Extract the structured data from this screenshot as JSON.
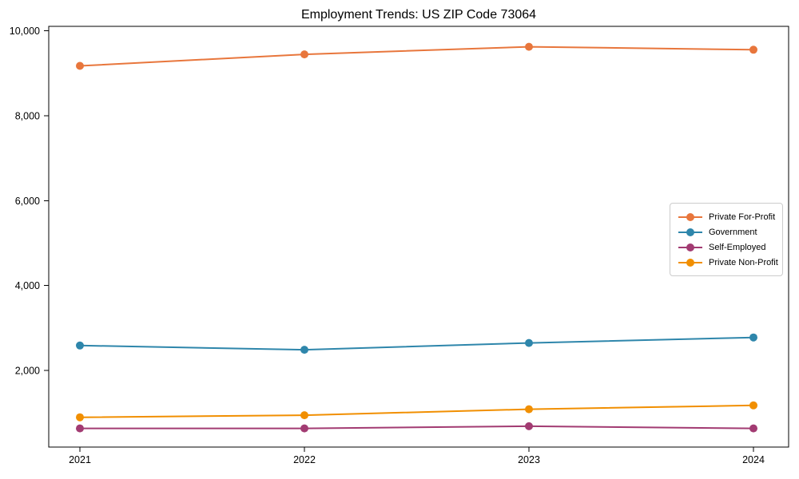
{
  "chart_data": {
    "type": "line",
    "title": "Employment Trends: US ZIP Code 73064",
    "categories": [
      "2021",
      "2022",
      "2023",
      "2024"
    ],
    "series": [
      {
        "name": "Private For-Profit",
        "color": "#E8763C",
        "values": [
          9170,
          9440,
          9620,
          9550
        ]
      },
      {
        "name": "Government",
        "color": "#2E86AB",
        "values": [
          2590,
          2490,
          2650,
          2780
        ]
      },
      {
        "name": "Self-Employed",
        "color": "#A23B72",
        "values": [
          640,
          640,
          690,
          640
        ]
      },
      {
        "name": "Private Non-Profit",
        "color": "#F18F01",
        "values": [
          900,
          950,
          1090,
          1180
        ]
      }
    ],
    "xlabel": "",
    "ylabel": "",
    "ylim": [
      200,
      10100
    ],
    "yticks": [
      {
        "value": 2000,
        "label": "2,000"
      },
      {
        "value": 4000,
        "label": "4,000"
      },
      {
        "value": 6000,
        "label": "6,000"
      },
      {
        "value": 8000,
        "label": "8,000"
      },
      {
        "value": 10000,
        "label": "10,000"
      }
    ],
    "grid": false,
    "legend_position": "center-right",
    "marker": "circle",
    "axis_color": "#000000",
    "background_color": "#ffffff"
  }
}
